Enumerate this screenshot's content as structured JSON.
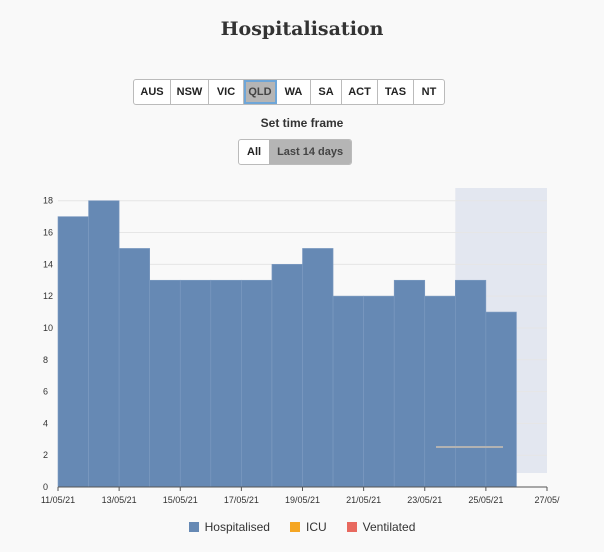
{
  "title": "Hospitalisation",
  "states": [
    {
      "label": "AUS",
      "active": false
    },
    {
      "label": "NSW",
      "active": false
    },
    {
      "label": "VIC",
      "active": false
    },
    {
      "label": "QLD",
      "active": true
    },
    {
      "label": "WA",
      "active": false
    },
    {
      "label": "SA",
      "active": false
    },
    {
      "label": "ACT",
      "active": false
    },
    {
      "label": "TAS",
      "active": false
    },
    {
      "label": "NT",
      "active": false
    }
  ],
  "timeframe": {
    "label": "Set time frame",
    "options": [
      {
        "label": "All",
        "active": false
      },
      {
        "label": "Last 14 days",
        "active": true
      }
    ]
  },
  "chart_data": {
    "type": "bar",
    "x": [
      "11/05/21",
      "12/05/21",
      "13/05/21",
      "14/05/21",
      "15/05/21",
      "16/05/21",
      "17/05/21",
      "18/05/21",
      "19/05/21",
      "20/05/21",
      "21/05/21",
      "22/05/21",
      "23/05/21",
      "24/05/21",
      "25/05/21"
    ],
    "series": [
      {
        "name": "Hospitalised",
        "color": "#6689b4",
        "values": [
          17,
          18,
          15,
          13,
          13,
          13,
          13,
          14,
          15,
          12,
          12,
          13,
          12,
          13,
          11
        ]
      },
      {
        "name": "ICU",
        "color": "#f5a623",
        "values": [
          0,
          0,
          0,
          0,
          0,
          0,
          0,
          0,
          0,
          0,
          0,
          0,
          0,
          0,
          0
        ]
      },
      {
        "name": "Ventilated",
        "color": "#e8695f",
        "values": [
          0,
          0,
          0,
          0,
          0,
          0,
          0,
          0,
          0,
          0,
          0,
          0,
          0,
          0,
          0
        ]
      }
    ],
    "xticks": [
      "11/05/21",
      "13/05/21",
      "15/05/21",
      "17/05/21",
      "19/05/21",
      "21/05/21",
      "23/05/21",
      "25/05/21",
      "27/05/"
    ],
    "xrange": [
      "11/05/21",
      "27/05/21"
    ],
    "yticks": [
      0,
      2,
      4,
      6,
      8,
      10,
      12,
      14,
      16,
      18
    ],
    "ylim": [
      0,
      18.8
    ],
    "shaded_from": "24/05/21",
    "shade_color": "#e3e7f0",
    "grid": true,
    "legend_position": "bottom"
  }
}
